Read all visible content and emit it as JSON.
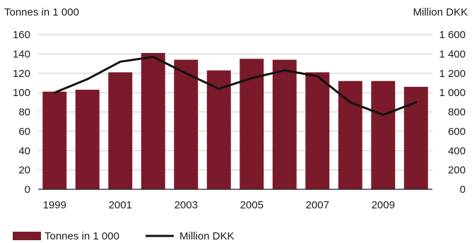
{
  "chart_data": {
    "type": "bar",
    "categories": [
      "1999",
      "2000",
      "2001",
      "2002",
      "2003",
      "2004",
      "2005",
      "2006",
      "2007",
      "2008",
      "2009",
      "2010"
    ],
    "x_tick_labels": [
      "1999",
      "2001",
      "2003",
      "2005",
      "2007",
      "2009"
    ],
    "left_axis": {
      "label": "Tonnes in 1 000",
      "ylim": [
        0,
        160
      ],
      "ticks": [
        "0",
        "20",
        "40",
        "60",
        "80",
        "100",
        "120",
        "140",
        "160"
      ]
    },
    "right_axis": {
      "label": "Million DKK",
      "ylim": [
        0,
        1600
      ],
      "ticks": [
        "0",
        "200",
        "400",
        "600",
        "800",
        "1 000",
        "1 200",
        "1 400",
        "1 600"
      ]
    },
    "series": [
      {
        "name": "Tonnes in 1 000",
        "kind": "bar",
        "axis": "left",
        "color": "#7b1a2a",
        "values": [
          101,
          103,
          121,
          141,
          134,
          123,
          135,
          134,
          121,
          112,
          112,
          106
        ]
      },
      {
        "name": "Million DKK",
        "kind": "line",
        "axis": "right",
        "color": "#111111",
        "values": [
          1000,
          1140,
          1320,
          1370,
          1200,
          1040,
          1150,
          1230,
          1170,
          900,
          770,
          900
        ]
      }
    ],
    "grid": "horizontal",
    "legend_position": "bottom-left"
  }
}
